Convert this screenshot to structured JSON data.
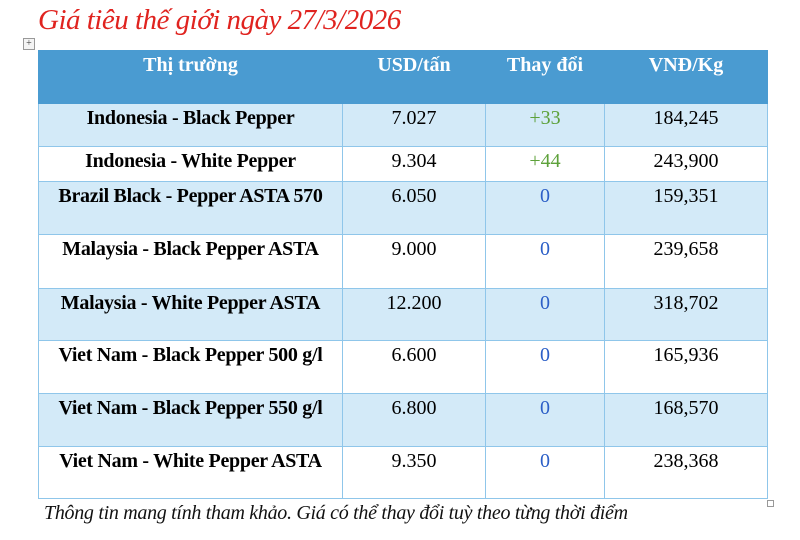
{
  "title": "Giá tiêu thế giới ngày 27/3/2026",
  "headers": [
    "Thị trường",
    "USD/tấn",
    "Thay đổi",
    "VNĐ/Kg"
  ],
  "rows": [
    {
      "market": "Indonesia - Black Pepper",
      "usd": "7.027",
      "change": "+33",
      "vnd": "184,245",
      "up": true
    },
    {
      "market": "Indonesia - White Pepper",
      "usd": "9.304",
      "change": "+44",
      "vnd": "243,900",
      "up": true
    },
    {
      "market": "Brazil Black - Pepper ASTA 570",
      "usd": "6.050",
      "change": "0",
      "vnd": "159,351",
      "up": false
    },
    {
      "market": "Malaysia - Black Pepper ASTA",
      "usd": "9.000",
      "change": "0",
      "vnd": "239,658",
      "up": false
    },
    {
      "market": "Malaysia - White Pepper ASTA",
      "usd": "12.200",
      "change": "0",
      "vnd": "318,702",
      "up": false
    },
    {
      "market": "Viet Nam - Black Pepper 500 g/l",
      "usd": "6.600",
      "change": "0",
      "vnd": "165,936",
      "up": false
    },
    {
      "market": "Viet Nam - Black Pepper 550 g/l",
      "usd": "6.800",
      "change": "0",
      "vnd": "168,570",
      "up": false
    },
    {
      "market": "Viet Nam - White Pepper ASTA",
      "usd": "9.350",
      "change": "0",
      "vnd": "238,368",
      "up": false
    }
  ],
  "note": "Thông tin mang tính tham khảo. Giá có thể thay đổi tuỳ theo từng thời điểm",
  "colors": {
    "title": "#e0231f",
    "header": "#4a9bd1",
    "shade": "#d3eaf8",
    "up": "#5da13a",
    "zero": "#2c5fc7"
  }
}
